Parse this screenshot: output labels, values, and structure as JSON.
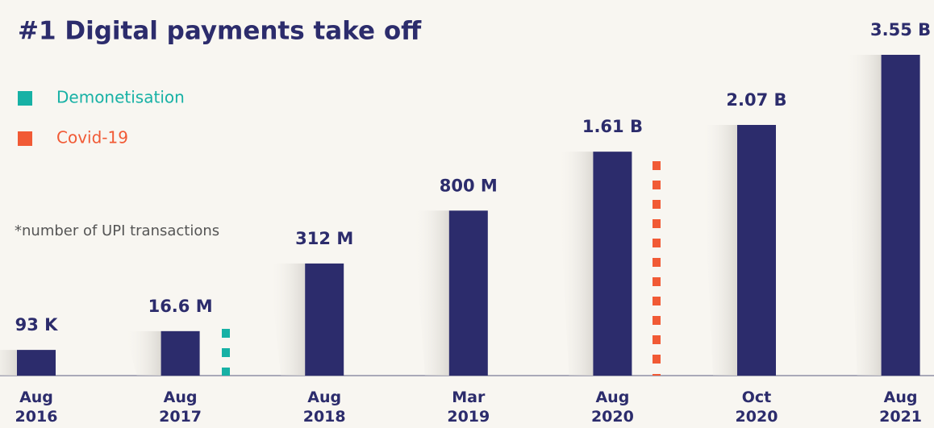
{
  "chart_data": {
    "type": "bar",
    "title": "#1 Digital payments take off",
    "note": "*number of UPI transactions",
    "categories": [
      "Aug 2016",
      "Aug 2017",
      "Aug 2018",
      "Mar 2019",
      "Aug 2020",
      "Oct 2020",
      "Aug 2021"
    ],
    "values": [
      93000,
      16600000,
      312000000,
      800000000,
      1610000000,
      2070000000,
      3550000000
    ],
    "value_labels": [
      "93 K",
      "16.6 M",
      "312 M",
      "800 M",
      "1.61 B",
      "2.07 B",
      "3.55 B"
    ],
    "color": "#2c2c6c",
    "scale": "sqrt",
    "events": [
      {
        "name": "Demonetisation",
        "color": "#17b1a5"
      },
      {
        "name": "Covid-19",
        "color": "#f15a35"
      }
    ]
  }
}
